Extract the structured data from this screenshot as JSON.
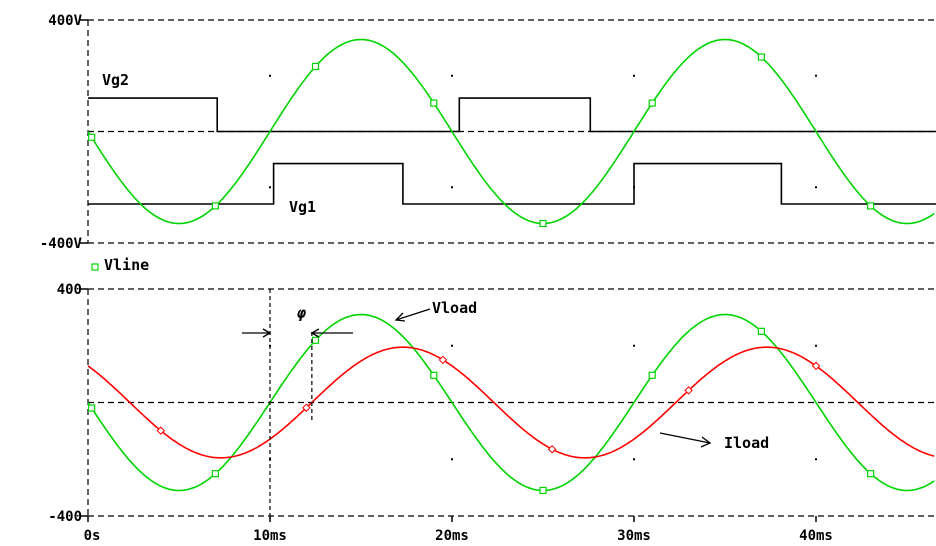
{
  "chart_data": [
    {
      "type": "line",
      "x_unit": "ms",
      "ylim": [
        -400,
        400
      ],
      "xlim": [
        0,
        47
      ],
      "y_ticks": [
        {
          "label": "400V",
          "value": 400
        },
        {
          "label": "-400V",
          "value": -400
        }
      ],
      "x_ticks": [],
      "series": [
        {
          "name": "Vg2",
          "kind": "square",
          "color": "#000000",
          "points": [
            [
              0,
              120
            ],
            [
              7.1,
              120
            ],
            [
              7.1,
              0
            ],
            [
              20.4,
              0
            ],
            [
              20.4,
              120
            ],
            [
              27.6,
              120
            ],
            [
              27.6,
              0
            ],
            [
              47,
              0
            ]
          ]
        },
        {
          "name": "Vg1",
          "kind": "square",
          "color": "#000000",
          "points": [
            [
              0,
              -260
            ],
            [
              10.2,
              -260
            ],
            [
              10.2,
              -115
            ],
            [
              17.3,
              -115
            ],
            [
              17.3,
              -260
            ],
            [
              30,
              -260
            ],
            [
              30,
              -115
            ],
            [
              38.1,
              -115
            ],
            [
              38.1,
              -260
            ],
            [
              47,
              -260
            ]
          ]
        },
        {
          "name": "Vline",
          "kind": "sine",
          "color": "#00d400",
          "marker": "square",
          "amplitude": 330,
          "period_ms": 20,
          "phase_ms": 0,
          "sign": -1,
          "marker_x": [
            0.2,
            7,
            12.5,
            19,
            25,
            31,
            37,
            43
          ]
        }
      ],
      "annotations": [
        {
          "text": "Vg2"
        },
        {
          "text": "Vg1"
        }
      ]
    },
    {
      "type": "line",
      "x_unit": "ms",
      "ylim": [
        -400,
        400
      ],
      "xlim": [
        0,
        47
      ],
      "y_ticks": [
        {
          "label": "400",
          "value": 400
        },
        {
          "label": "-400",
          "value": -400
        }
      ],
      "x_ticks": [
        {
          "label": "0s",
          "value": 0
        },
        {
          "label": "10ms",
          "value": 10
        },
        {
          "label": "20ms",
          "value": 20
        },
        {
          "label": "30ms",
          "value": 30
        },
        {
          "label": "40ms",
          "value": 40
        }
      ],
      "legend": [
        {
          "name": "Vline",
          "color": "#00d400",
          "marker": "square"
        }
      ],
      "series": [
        {
          "name": "Vload",
          "kind": "sine",
          "color": "#00d400",
          "marker": "square",
          "amplitude": 310,
          "period_ms": 20,
          "phase_ms": 0,
          "sign": -1,
          "marker_x": [
            0.2,
            7,
            12.5,
            19,
            25,
            31,
            37,
            43
          ]
        },
        {
          "name": "Iload",
          "kind": "sine",
          "color": "#ff0000",
          "marker": "diamond",
          "amplitude": 195,
          "period_ms": 20,
          "phase_ms": 2.3,
          "sign": -1,
          "marker_x": [
            4,
            12,
            19.5,
            25.5,
            33,
            40
          ]
        }
      ],
      "annotations": [
        {
          "text": "φ"
        },
        {
          "text": "Vload"
        },
        {
          "text": "Iload"
        }
      ]
    }
  ]
}
